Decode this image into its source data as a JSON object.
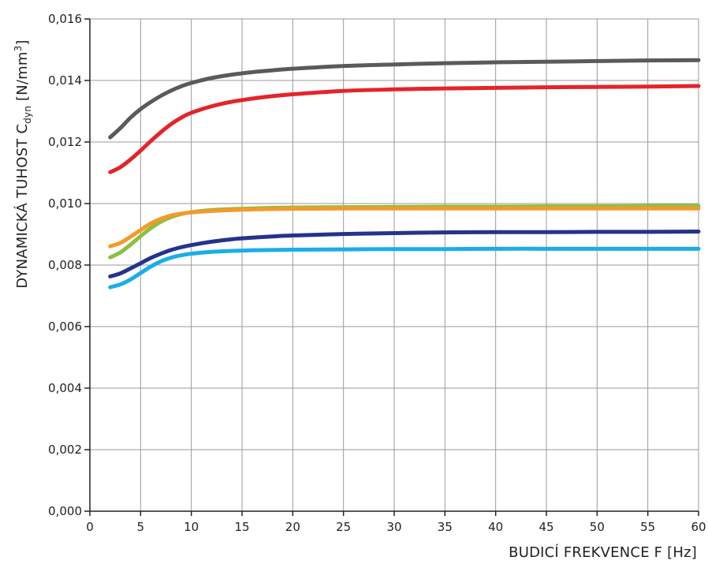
{
  "chart_data": {
    "type": "line",
    "title": "",
    "xlabel": "BUDICÍ FREKVENCE F [Hz]",
    "ylabel": {
      "prefix": "DYNAMICKÁ TUHOST  C",
      "subscript": "dyn",
      "unit_before": " [N/mm",
      "superscript": "3",
      "unit_after": "]"
    },
    "xlim": [
      0,
      60
    ],
    "ylim": [
      0,
      0.016
    ],
    "grid": true,
    "x_ticks": [
      0,
      5,
      10,
      15,
      20,
      25,
      30,
      35,
      40,
      45,
      50,
      55,
      60
    ],
    "x_tick_labels": [
      "0",
      "5",
      "10",
      "15",
      "20",
      "25",
      "30",
      "35",
      "40",
      "45",
      "50",
      "55",
      "60"
    ],
    "y_ticks": [
      0,
      0.002,
      0.004,
      0.006,
      0.008,
      0.01,
      0.012,
      0.014,
      0.016
    ],
    "y_tick_labels": [
      "0,000",
      "0,002",
      "0,004",
      "0,006",
      "0,008",
      "0,010",
      "0,012",
      "0,014",
      "0,016"
    ],
    "x": [
      2,
      3,
      4,
      5,
      6,
      7,
      8,
      9,
      10,
      12,
      14,
      16,
      18,
      20,
      25,
      30,
      35,
      40,
      45,
      50,
      55,
      60
    ],
    "series": [
      {
        "color": "#5a5a5a",
        "values": [
          0.01215,
          0.01245,
          0.01279,
          0.01307,
          0.0133,
          0.0135,
          0.01367,
          0.01381,
          0.01392,
          0.01408,
          0.01419,
          0.01427,
          0.01433,
          0.01438,
          0.01447,
          0.01452,
          0.01456,
          0.01459,
          0.01461,
          0.01463,
          0.01465,
          0.01466
        ]
      },
      {
        "color": "#e3242b",
        "values": [
          0.01102,
          0.01118,
          0.01143,
          0.01172,
          0.01203,
          0.01232,
          0.01258,
          0.01279,
          0.01295,
          0.01316,
          0.01331,
          0.01341,
          0.01349,
          0.01355,
          0.01366,
          0.01371,
          0.01374,
          0.01376,
          0.01378,
          0.01379,
          0.0138,
          0.01382
        ]
      },
      {
        "color": "#8bc140",
        "values": [
          0.00825,
          0.00841,
          0.00866,
          0.00894,
          0.0092,
          0.00941,
          0.00956,
          0.00966,
          0.00972,
          0.00979,
          0.00982,
          0.00984,
          0.00986,
          0.00987,
          0.00988,
          0.00989,
          0.0099,
          0.0099,
          0.00991,
          0.00991,
          0.00992,
          0.00992
        ]
      },
      {
        "color": "#f39a2b",
        "values": [
          0.00861,
          0.00872,
          0.00892,
          0.00914,
          0.00935,
          0.0095,
          0.00961,
          0.00967,
          0.00971,
          0.00976,
          0.00979,
          0.00981,
          0.00982,
          0.00983,
          0.00984,
          0.00984,
          0.00984,
          0.00984,
          0.00984,
          0.00984,
          0.00984,
          0.00984
        ]
      },
      {
        "color": "#25338a",
        "values": [
          0.00763,
          0.00773,
          0.00789,
          0.00806,
          0.00823,
          0.00837,
          0.00849,
          0.00858,
          0.00865,
          0.00876,
          0.00884,
          0.00889,
          0.00893,
          0.00896,
          0.00901,
          0.00904,
          0.00906,
          0.00907,
          0.00907,
          0.00908,
          0.00908,
          0.00909
        ]
      },
      {
        "color": "#1aaee6",
        "values": [
          0.00728,
          0.00737,
          0.00753,
          0.00774,
          0.00795,
          0.00812,
          0.00824,
          0.00832,
          0.00837,
          0.00843,
          0.00846,
          0.00848,
          0.00849,
          0.0085,
          0.00851,
          0.00852,
          0.00852,
          0.00853,
          0.00853,
          0.00853,
          0.00853,
          0.00853
        ]
      }
    ]
  }
}
